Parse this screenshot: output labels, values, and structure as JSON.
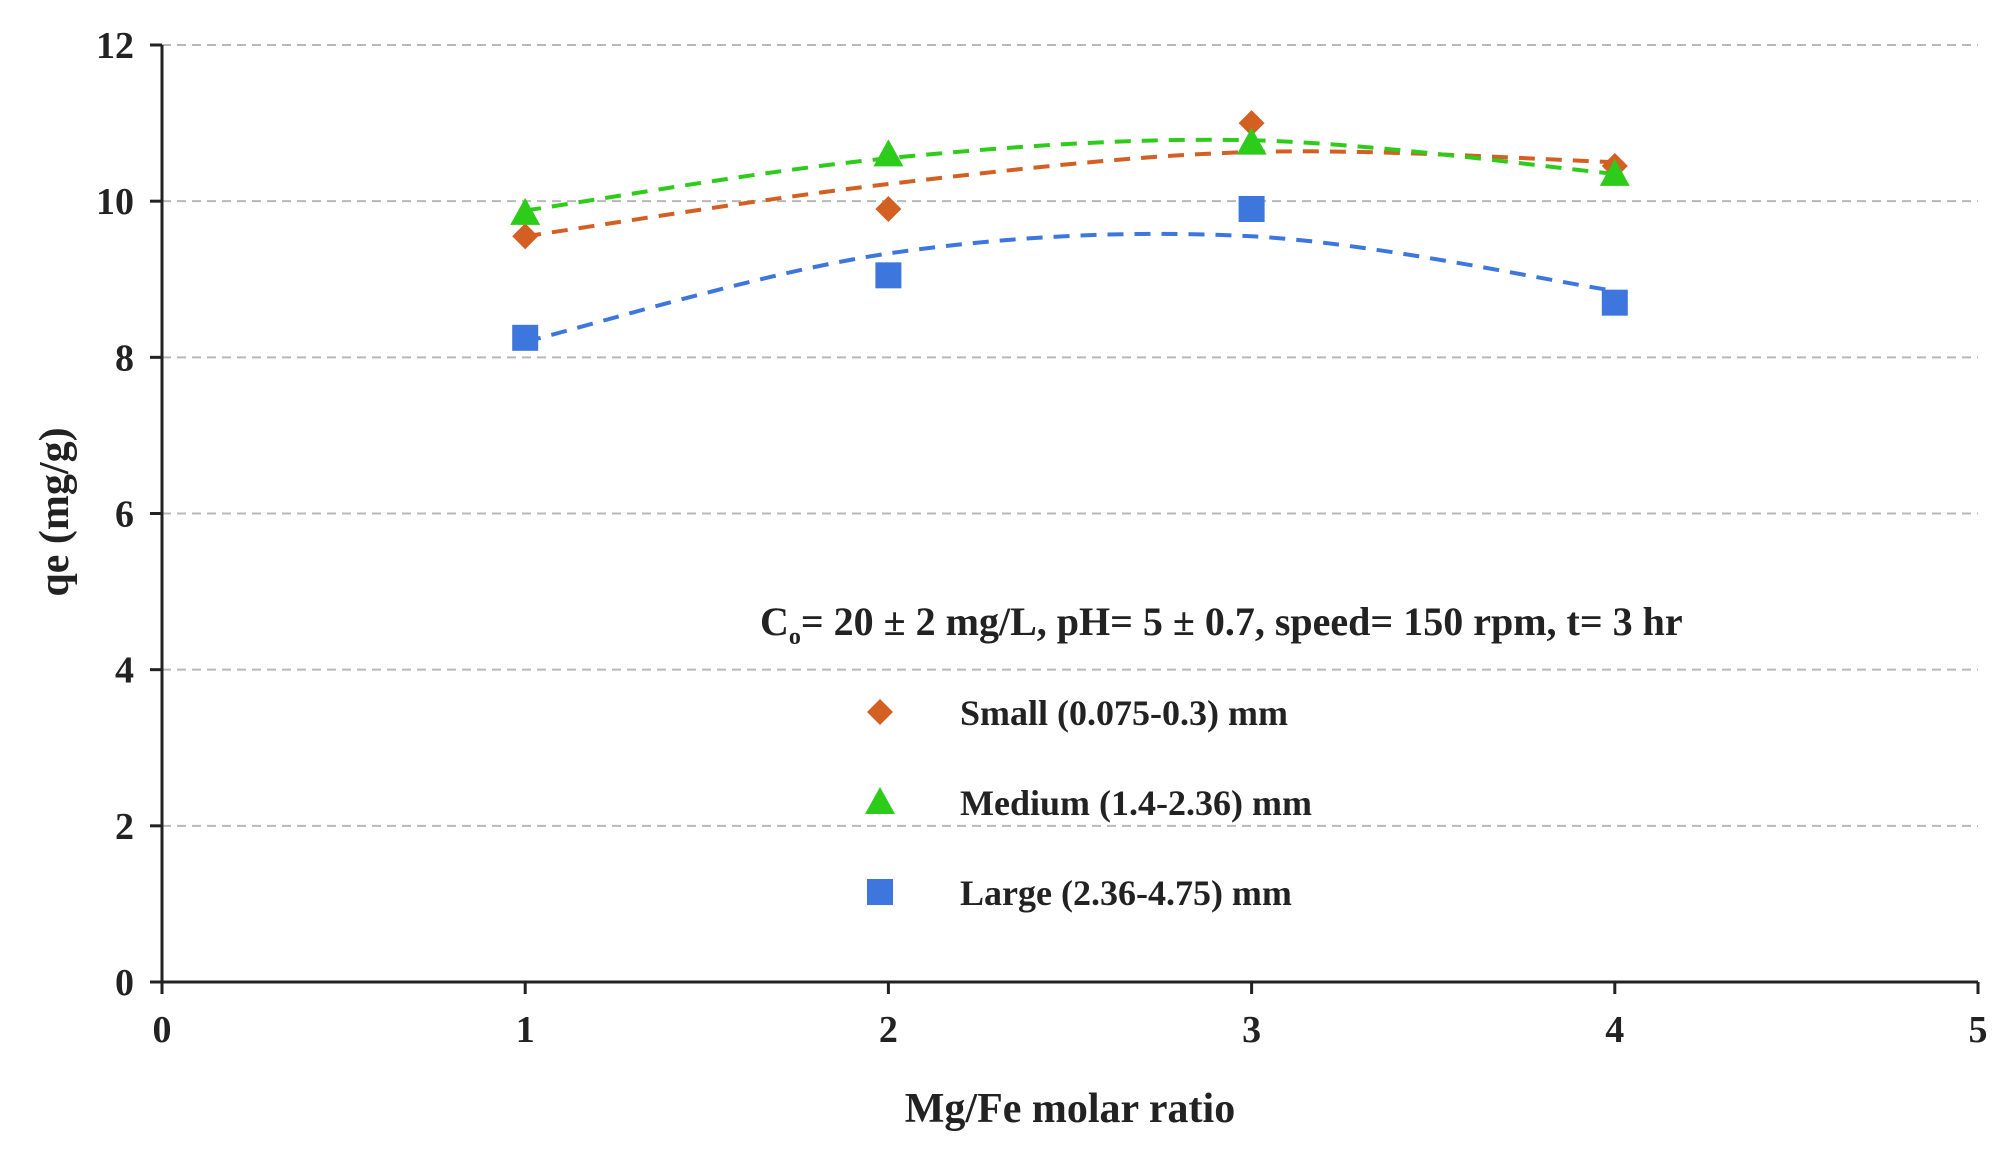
{
  "chart_data": {
    "type": "scatter",
    "title": "",
    "xlabel": "Mg/Fe molar ratio",
    "ylabel": "qe (mg/g)",
    "xlim": [
      0,
      5
    ],
    "ylim": [
      0,
      12
    ],
    "xticks": [
      "0",
      "1",
      "2",
      "3",
      "4",
      "5"
    ],
    "yticks": [
      "0",
      "2",
      "4",
      "6",
      "8",
      "10",
      "12"
    ],
    "grid": "horizontal dashed",
    "condition": {
      "prefix": "C",
      "subscript": "o",
      "rest": "= 20 ± 2 mg/L, pH= 5 ± 0.7, speed= 150 rpm,  t= 3 hr"
    },
    "legend_position": "center-right",
    "x": [
      1,
      2,
      3,
      4
    ],
    "series": [
      {
        "name": "Small (0.075-0.3) mm",
        "marker": "diamond",
        "color": "#d35f23",
        "values": [
          9.55,
          9.9,
          11.0,
          10.45
        ],
        "trend": [
          9.55,
          10.22,
          10.63,
          10.5
        ]
      },
      {
        "name": "Medium (1.4-2.36) mm",
        "marker": "triangle",
        "color": "#2ecc1a",
        "values": [
          9.85,
          10.6,
          10.75,
          10.35
        ],
        "trend": [
          9.88,
          10.55,
          10.78,
          10.35
        ]
      },
      {
        "name": "Large (2.36-4.75) mm",
        "marker": "square",
        "color": "#3d76dd",
        "values": [
          8.25,
          9.05,
          9.9,
          8.7
        ],
        "trend": [
          8.2,
          9.33,
          9.55,
          8.85
        ]
      }
    ]
  }
}
